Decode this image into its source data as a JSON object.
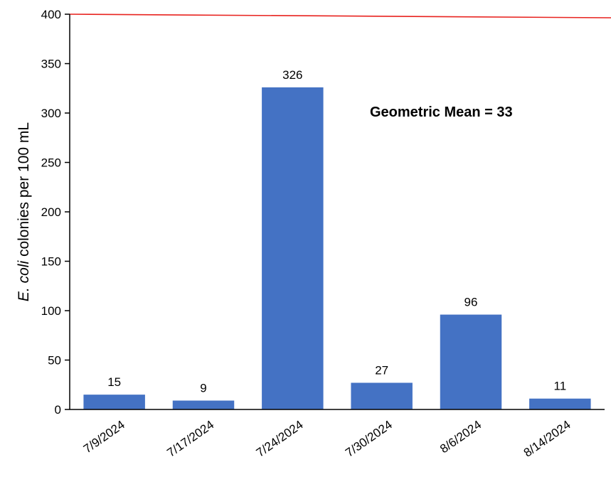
{
  "chart_data": {
    "type": "bar",
    "categories": [
      "7/9/2024",
      "7/17/2024",
      "7/24/2024",
      "7/30/2024",
      "8/6/2024",
      "8/14/2024"
    ],
    "values": [
      15,
      9,
      326,
      27,
      96,
      11
    ],
    "data_labels": [
      "15",
      "9",
      "326",
      "27",
      "96",
      "11"
    ],
    "ylabel_italic": "E. coli",
    "ylabel_rest": " colonies per 100 mL",
    "ylim": [
      0,
      400
    ],
    "yticks": [
      0,
      50,
      100,
      150,
      200,
      250,
      300,
      350,
      400
    ],
    "reference_line": {
      "value": 400,
      "color": "#e8231f"
    },
    "annotation": "Geometric Mean = 33",
    "bar_color": "#4472c4",
    "grid": false,
    "legend": "none"
  }
}
